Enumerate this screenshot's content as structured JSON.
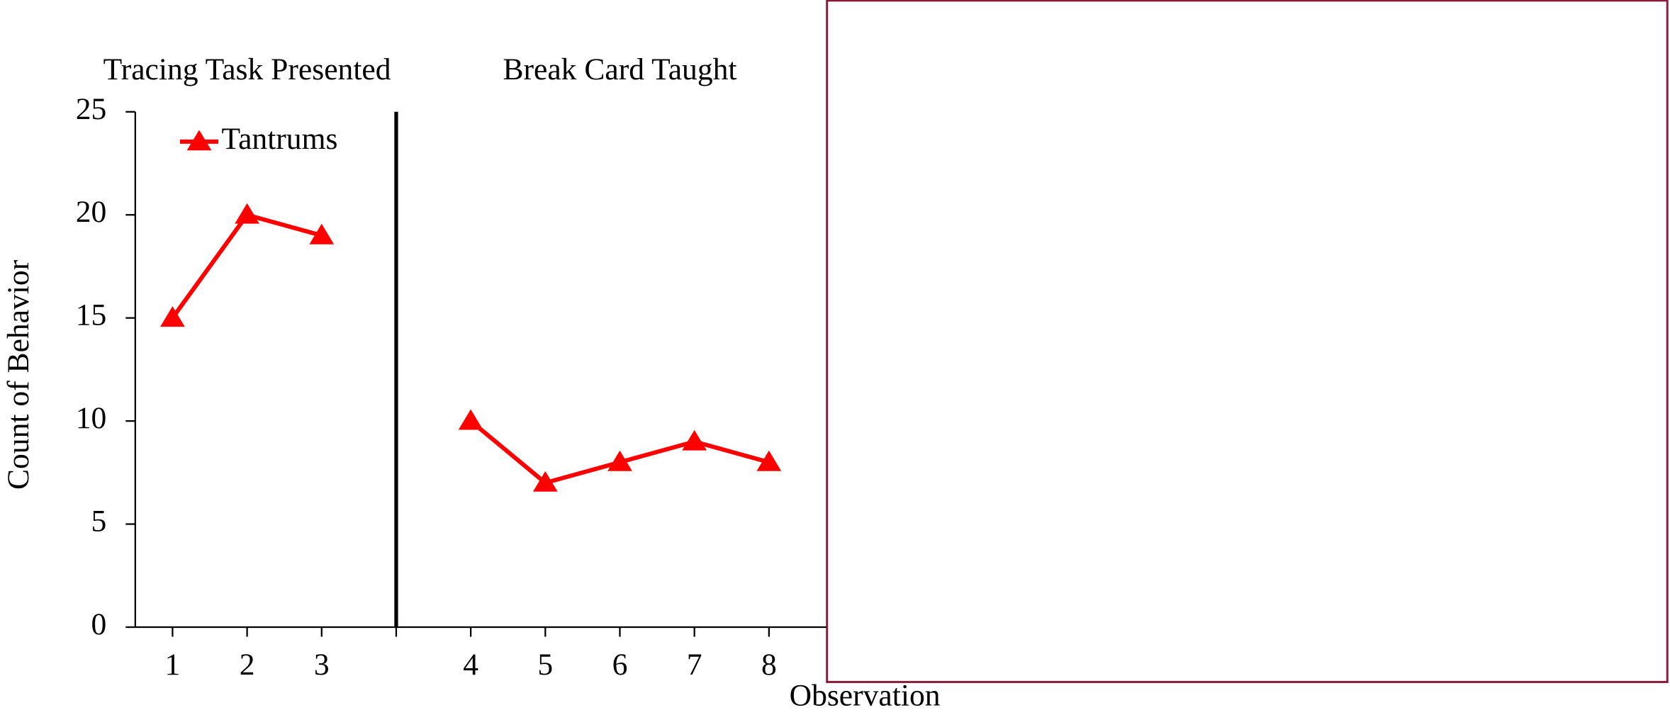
{
  "chart_data": {
    "type": "line",
    "y_label": "Count of Behavior",
    "x_label": "Observation",
    "annotations": [
      "Tracing Task Presented",
      "Break Card Taught"
    ],
    "categories": [
      "1",
      "2",
      "3",
      null,
      "4",
      "5",
      "6",
      "7",
      "8"
    ],
    "series": [
      {
        "name": "Tantrums",
        "color": "#ff0000",
        "values": [
          15,
          20,
          19,
          null,
          10,
          7,
          8,
          9,
          8
        ]
      }
    ],
    "ylim": [
      0,
      25
    ],
    "yticks": [
      0,
      5,
      10,
      15,
      20,
      25
    ],
    "grid": false,
    "legend": "upper left"
  }
}
